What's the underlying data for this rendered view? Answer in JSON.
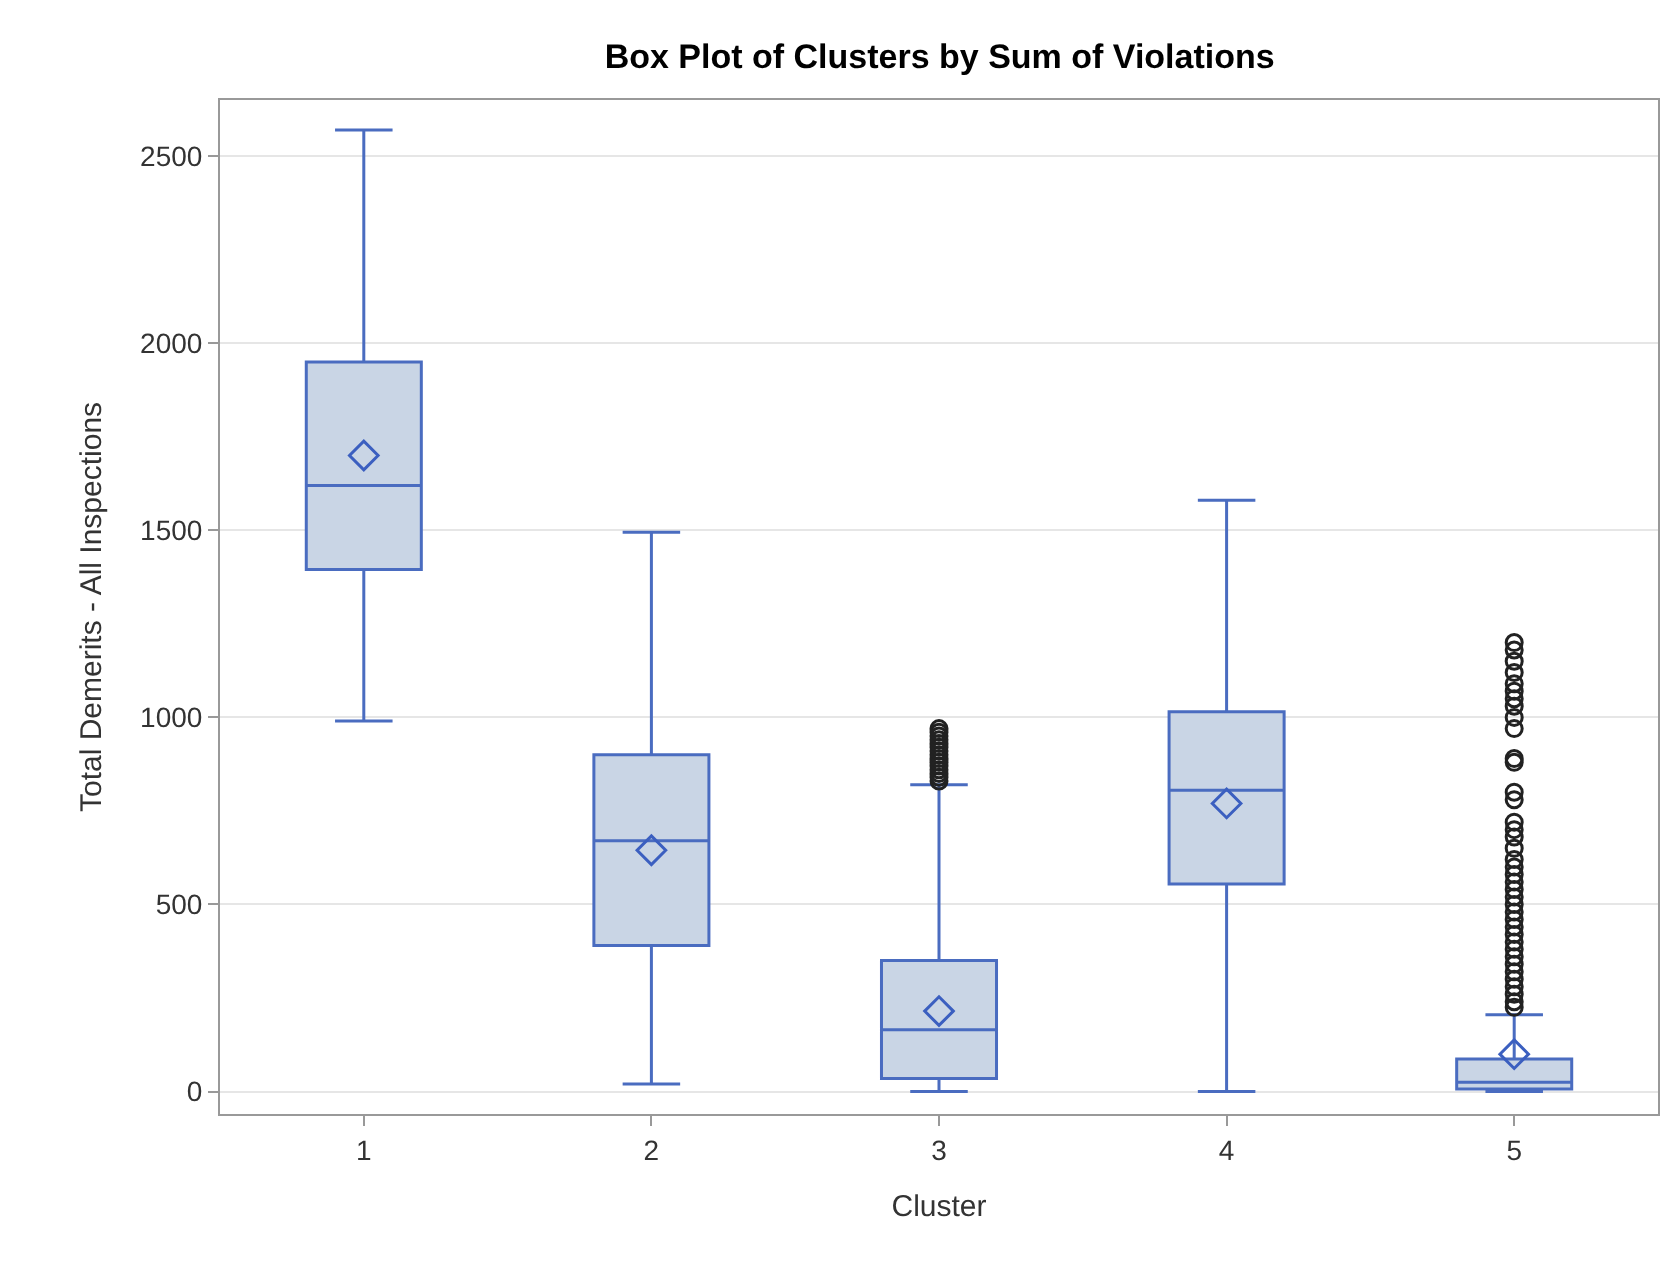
{
  "chart_data": {
    "type": "box",
    "title": "Box Plot of Clusters by Sum of Violations",
    "xlabel": "Cluster",
    "ylabel": "Total Demerits - All Inspections",
    "categories": [
      "1",
      "2",
      "3",
      "4",
      "5"
    ],
    "color": "#c9d5e5",
    "boxes": [
      {
        "low": 990,
        "q1": 1395,
        "median": 1620,
        "q3": 1950,
        "high": 2570,
        "mean": 1700
      },
      {
        "low": 20,
        "q1": 390,
        "median": 670,
        "q3": 900,
        "high": 1495,
        "mean": 645
      },
      {
        "low": 0,
        "q1": 35,
        "median": 165,
        "q3": 350,
        "high": 820,
        "mean": 215,
        "outliers": [
          830,
          840,
          850,
          860,
          870,
          880,
          890,
          900,
          910,
          920,
          930,
          940,
          950,
          960,
          970
        ]
      },
      {
        "low": 0,
        "q1": 555,
        "median": 805,
        "q3": 1015,
        "high": 1580,
        "mean": 770
      },
      {
        "low": 0,
        "q1": 7,
        "median": 25,
        "q3": 87,
        "high": 205,
        "mean": 100,
        "outliers": [
          225,
          240,
          260,
          280,
          300,
          320,
          340,
          360,
          380,
          400,
          420,
          440,
          460,
          480,
          500,
          520,
          540,
          560,
          580,
          600,
          620,
          650,
          680,
          700,
          720,
          780,
          800,
          880,
          890,
          970,
          1000,
          1030,
          1050,
          1070,
          1090,
          1120,
          1150,
          1180,
          1200
        ]
      }
    ],
    "ylim": [
      -60,
      2650
    ],
    "yticks": [
      0,
      500,
      1000,
      1500,
      2000,
      2500
    ],
    "grid": "y",
    "marker": "diamond"
  }
}
